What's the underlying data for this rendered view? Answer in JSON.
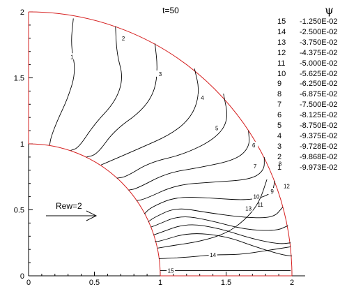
{
  "chart_data": {
    "type": "contour",
    "title": "t=50",
    "legend_title": "ψ",
    "xlim": [
      0,
      2.1
    ],
    "ylim": [
      0,
      2
    ],
    "x_ticks": [
      "0",
      "0.5",
      "1",
      "1.5",
      "2"
    ],
    "y_ticks": [
      "0",
      "0.5",
      "1",
      "1.5",
      "2"
    ],
    "domain": {
      "shape": "quarter-annulus",
      "inner_radius": 1,
      "outer_radius": 2,
      "boundary_color": "#d62020"
    },
    "annotation": "Rew=2",
    "levels": [
      {
        "level": "15",
        "psi": "-1.250E-02"
      },
      {
        "level": "14",
        "psi": "-2.500E-02"
      },
      {
        "level": "13",
        "psi": "-3.750E-02"
      },
      {
        "level": "12",
        "psi": "-4.375E-02"
      },
      {
        "level": "11",
        "psi": "-5.000E-02"
      },
      {
        "level": "10",
        "psi": "-5.625E-02"
      },
      {
        "level": "9",
        "psi": "-6.250E-02"
      },
      {
        "level": "8",
        "psi": "-6.875E-02"
      },
      {
        "level": "7",
        "psi": "-7.500E-02"
      },
      {
        "level": "6",
        "psi": "-8.125E-02"
      },
      {
        "level": "5",
        "psi": "-8.750E-02"
      },
      {
        "level": "4",
        "psi": "-9.375E-02"
      },
      {
        "level": "3",
        "psi": "-9.728E-02"
      },
      {
        "level": "2",
        "psi": "-9.868E-02"
      },
      {
        "level": "1",
        "psi": "-9.973E-02"
      }
    ],
    "contours": [
      {
        "label": "1",
        "points": [
          [
            0.34,
            1.95
          ],
          [
            0.32,
            1.75
          ],
          [
            0.36,
            1.55
          ],
          [
            0.3,
            1.35
          ],
          [
            0.22,
            1.18
          ],
          [
            0.17,
            1.05
          ],
          [
            0.16,
            0.99
          ]
        ],
        "label_at": [
          0.33,
          1.66
        ]
      },
      {
        "label": "2",
        "points": [
          [
            0.66,
            1.89
          ],
          [
            0.67,
            1.68
          ],
          [
            0.72,
            1.5
          ],
          [
            0.66,
            1.32
          ],
          [
            0.5,
            1.15
          ],
          [
            0.38,
            0.97
          ],
          [
            0.32,
            0.95
          ]
        ],
        "label_at": [
          0.72,
          1.8
        ]
      },
      {
        "label": "3",
        "points": [
          [
            0.96,
            1.76
          ],
          [
            0.98,
            1.58
          ],
          [
            0.96,
            1.4
          ],
          [
            0.86,
            1.25
          ],
          [
            0.65,
            1.1
          ],
          [
            0.52,
            0.92
          ],
          [
            0.44,
            0.9
          ]
        ],
        "label_at": [
          1.0,
          1.53
        ]
      },
      {
        "label": "4",
        "points": [
          [
            1.26,
            1.57
          ],
          [
            1.3,
            1.4
          ],
          [
            1.25,
            1.22
          ],
          [
            1.1,
            1.08
          ],
          [
            0.83,
            0.96
          ],
          [
            0.62,
            0.87
          ],
          [
            0.55,
            0.84
          ]
        ],
        "label_at": [
          1.32,
          1.35
        ]
      },
      {
        "label": "5",
        "points": [
          [
            1.48,
            1.38
          ],
          [
            1.52,
            1.18
          ],
          [
            1.42,
            1.04
          ],
          [
            1.18,
            0.92
          ],
          [
            0.92,
            0.86
          ],
          [
            0.74,
            0.75
          ],
          [
            0.67,
            0.74
          ]
        ],
        "label_at": [
          1.43,
          1.12
        ]
      },
      {
        "label": "6",
        "points": [
          [
            1.67,
            1.1
          ],
          [
            1.68,
            0.98
          ],
          [
            1.58,
            0.88
          ],
          [
            1.3,
            0.82
          ],
          [
            1.05,
            0.78
          ],
          [
            0.82,
            0.66
          ],
          [
            0.76,
            0.65
          ]
        ],
        "label_at": [
          1.71,
          0.99
        ]
      },
      {
        "label": "7",
        "points": [
          [
            1.79,
            0.9
          ],
          [
            1.79,
            0.8
          ],
          [
            1.69,
            0.73
          ],
          [
            1.4,
            0.71
          ],
          [
            1.12,
            0.69
          ],
          [
            0.88,
            0.58
          ],
          [
            0.82,
            0.57
          ]
        ],
        "label_at": [
          1.72,
          0.83
        ]
      },
      {
        "label": "8",
        "points": [
          [
            1.87,
            0.72
          ],
          [
            1.85,
            0.62
          ],
          [
            1.68,
            0.57
          ],
          [
            1.38,
            0.59
          ],
          [
            1.12,
            0.6
          ],
          [
            0.93,
            0.52
          ],
          [
            0.88,
            0.47
          ]
        ],
        "label_at": [
          1.91,
          0.85
        ]
      },
      {
        "label": "9",
        "points": [
          [
            1.93,
            0.52
          ],
          [
            1.86,
            0.44
          ],
          [
            1.65,
            0.44
          ],
          [
            1.35,
            0.48
          ],
          [
            1.12,
            0.52
          ],
          [
            0.95,
            0.44
          ],
          [
            0.91,
            0.41
          ]
        ],
        "label_at": [
          1.85,
          0.64
        ]
      },
      {
        "label": "10",
        "points": [
          [
            1.97,
            0.38
          ],
          [
            1.88,
            0.34
          ],
          [
            1.64,
            0.35
          ],
          [
            1.38,
            0.42
          ],
          [
            1.15,
            0.46
          ],
          [
            0.96,
            0.38
          ],
          [
            0.93,
            0.37
          ]
        ],
        "label_at": [
          1.73,
          0.6
        ]
      },
      {
        "label": "11",
        "points": [
          [
            1.99,
            0.25
          ],
          [
            1.9,
            0.24
          ],
          [
            1.7,
            0.28
          ],
          [
            1.45,
            0.36
          ],
          [
            1.2,
            0.4
          ],
          [
            0.98,
            0.32
          ],
          [
            0.95,
            0.31
          ]
        ],
        "label_at": [
          1.76,
          0.54
        ]
      },
      {
        "label": "12",
        "points": [
          [
            2.0,
            0.15
          ],
          [
            1.92,
            0.16
          ],
          [
            1.72,
            0.22
          ],
          [
            1.5,
            0.3
          ],
          [
            1.22,
            0.33
          ],
          [
            0.99,
            0.26
          ],
          [
            0.96,
            0.26
          ]
        ],
        "label_at": [
          1.96,
          0.68
        ]
      },
      {
        "label": "13",
        "points": [
          [
            1.81,
            0.73
          ],
          [
            1.75,
            0.55
          ],
          [
            1.64,
            0.42
          ],
          [
            1.5,
            0.32
          ],
          [
            1.3,
            0.26
          ],
          [
            1.1,
            0.23
          ],
          [
            0.98,
            0.21
          ]
        ],
        "label_at": [
          1.67,
          0.51
        ]
      },
      {
        "label": "14",
        "points": [
          [
            1.99,
            0.22
          ],
          [
            1.8,
            0.19
          ],
          [
            1.6,
            0.16
          ],
          [
            1.4,
            0.16
          ],
          [
            1.2,
            0.14
          ],
          [
            1.0,
            0.13
          ],
          [
            0.99,
            0.13
          ]
        ],
        "label_at": [
          1.4,
          0.16
        ]
      },
      {
        "label": "15",
        "points": [
          [
            1.99,
            0.04
          ],
          [
            1.7,
            0.04
          ],
          [
            1.4,
            0.04
          ],
          [
            1.2,
            0.04
          ],
          [
            1.0,
            0.04
          ]
        ],
        "label_at": [
          1.08,
          0.04
        ]
      }
    ]
  }
}
